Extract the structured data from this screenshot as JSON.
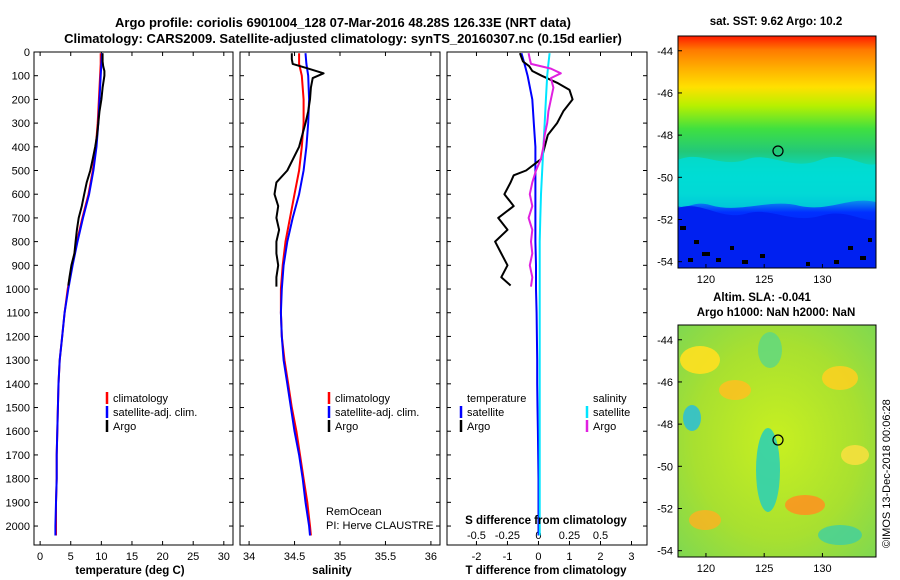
{
  "title": {
    "line1": "Argo profile: coriolis 6901004_128 07-Mar-2016 48.28S 126.33E (NRT data)",
    "line2": "Climatology: CARS2009. Satellite-adjusted climatology: synTS_20160307.nc (0.15d earlier)"
  },
  "side_labels": {
    "sst": "sat. SST: 9.62 Argo: 10.2",
    "sla": "Altim. SLA: -0.041",
    "argo_h": "Argo h1000: NaN h2000: NaN",
    "credit": "©IMOS 13-Dec-2018 00:06:28",
    "pi_line1": "RemOcean",
    "pi_line2": "PI: Herve CLAUSTRE"
  },
  "depth_ticks": [
    "0",
    "100",
    "200",
    "300",
    "400",
    "500",
    "600",
    "700",
    "800",
    "900",
    "1000",
    "1100",
    "1200",
    "1300",
    "1400",
    "1500",
    "1600",
    "1700",
    "1800",
    "1900",
    "2000"
  ],
  "map_ticks": {
    "lat": [
      "-44",
      "-46",
      "-48",
      "-50",
      "-52",
      "-54"
    ],
    "lon": [
      "120",
      "125",
      "130"
    ]
  },
  "colors": {
    "climatology": "#ff0000",
    "satellite": "#0000ff",
    "argo": "#000000",
    "sat_salinity": "#00e5ff",
    "argo_salinity": "#e020e0"
  },
  "chart_data": [
    {
      "type": "line",
      "title": "",
      "xlabel": "temperature (deg C)",
      "ylabel": "",
      "xlim": [
        -1,
        31.5
      ],
      "ylim": [
        2080,
        0
      ],
      "xticks": [
        "0",
        "5",
        "10",
        "15",
        "20",
        "25",
        "30"
      ],
      "legend": [
        "climatology",
        "satellite-adj. clim.",
        "Argo"
      ],
      "series": [
        {
          "name": "climatology",
          "color": "#ff0000",
          "depth": [
            5,
            50,
            100,
            200,
            300,
            400,
            500,
            600,
            700,
            800,
            900,
            1000,
            1100,
            1200,
            1300,
            1400,
            1500,
            1600,
            1700,
            1800,
            1900,
            2000,
            2040
          ],
          "values": [
            9.9,
            9.9,
            9.8,
            9.6,
            9.4,
            9.1,
            8.6,
            7.9,
            6.9,
            6.0,
            5.2,
            4.5,
            4.0,
            3.6,
            3.2,
            3.0,
            2.9,
            2.8,
            2.7,
            2.7,
            2.6,
            2.6,
            2.6
          ]
        },
        {
          "name": "satellite-adj. clim.",
          "color": "#0000ff",
          "depth": [
            5,
            50,
            100,
            200,
            300,
            400,
            500,
            600,
            700,
            800,
            900,
            1000,
            1100,
            1200,
            1300,
            1400,
            1500,
            1600,
            1700,
            1800,
            1900,
            2000,
            2040
          ],
          "values": [
            10.1,
            10.0,
            9.9,
            9.7,
            9.5,
            9.2,
            8.7,
            8.0,
            7.0,
            6.1,
            5.3,
            4.6,
            4.0,
            3.6,
            3.2,
            3.0,
            2.9,
            2.8,
            2.7,
            2.7,
            2.6,
            2.5,
            2.5
          ]
        },
        {
          "name": "Argo",
          "color": "#000000",
          "depth": [
            5,
            40,
            60,
            80,
            100,
            150,
            200,
            250,
            300,
            350,
            400,
            450,
            500,
            550,
            600,
            650,
            700,
            750,
            800,
            850,
            900,
            950,
            985
          ],
          "values": [
            10.2,
            10.2,
            10.3,
            10.5,
            10.5,
            10.2,
            10.0,
            9.7,
            9.5,
            9.3,
            9.0,
            8.6,
            8.2,
            7.6,
            7.2,
            6.8,
            6.3,
            6.0,
            5.8,
            5.6,
            5.1,
            4.8,
            4.6
          ]
        }
      ]
    },
    {
      "type": "line",
      "title": "",
      "xlabel": "salinity",
      "ylabel": "",
      "xlim": [
        33.9,
        36.1
      ],
      "ylim": [
        2080,
        0
      ],
      "xticks": [
        "34",
        "34.5",
        "35",
        "35.5",
        "36"
      ],
      "legend": [
        "climatology",
        "satellite-adj. clim.",
        "Argo"
      ],
      "series": [
        {
          "name": "climatology",
          "color": "#ff0000",
          "depth": [
            5,
            50,
            100,
            200,
            300,
            400,
            500,
            600,
            700,
            800,
            900,
            1000,
            1100,
            1200,
            1300,
            1400,
            1500,
            1600,
            1700,
            1800,
            1900,
            2000,
            2040
          ],
          "values": [
            34.55,
            34.55,
            34.58,
            34.6,
            34.6,
            34.58,
            34.55,
            34.5,
            34.45,
            34.4,
            34.37,
            34.35,
            34.35,
            34.36,
            34.39,
            34.43,
            34.47,
            34.52,
            34.56,
            34.6,
            34.64,
            34.67,
            34.68
          ]
        },
        {
          "name": "satellite-adj. clim.",
          "color": "#0000ff",
          "depth": [
            5,
            50,
            100,
            200,
            300,
            400,
            500,
            600,
            700,
            800,
            900,
            1000,
            1100,
            1200,
            1300,
            1400,
            1500,
            1600,
            1700,
            1800,
            1900,
            2000,
            2040
          ],
          "values": [
            34.62,
            34.63,
            34.65,
            34.66,
            34.65,
            34.63,
            34.6,
            34.55,
            34.48,
            34.42,
            34.38,
            34.36,
            34.35,
            34.36,
            34.38,
            34.42,
            34.46,
            34.5,
            34.55,
            34.59,
            34.62,
            34.66,
            34.67
          ]
        },
        {
          "name": "Argo",
          "color": "#000000",
          "depth": [
            5,
            30,
            50,
            70,
            90,
            110,
            150,
            200,
            250,
            300,
            400,
            500,
            550,
            600,
            650,
            700,
            750,
            800,
            850,
            900,
            950,
            990
          ],
          "values": [
            34.47,
            34.47,
            34.48,
            34.65,
            34.82,
            34.7,
            34.68,
            34.67,
            34.65,
            34.62,
            34.55,
            34.42,
            34.3,
            34.28,
            34.32,
            34.3,
            34.33,
            34.3,
            34.3,
            34.32,
            34.3,
            34.3
          ]
        }
      ]
    },
    {
      "type": "line",
      "title": "",
      "xlabel": "T difference from climatology",
      "xlabel2": "S difference from climatology",
      "ylabel": "",
      "xlim": [
        -2.95,
        3.5
      ],
      "x2lim": [
        -0.7375,
        0.875
      ],
      "ylim": [
        2080,
        0
      ],
      "xticks": [
        "-2",
        "-1",
        "0",
        "1",
        "2",
        "3"
      ],
      "x2ticks": [
        "-0.5",
        "-0.25",
        "0",
        "0.25",
        "0.5"
      ],
      "legend_temperature": [
        "temperature",
        "satellite",
        "Argo"
      ],
      "legend_salinity": [
        "salinity",
        "satellite",
        "Argo"
      ],
      "series": [
        {
          "name": "T satellite",
          "color": "#0000ff",
          "axis": "T",
          "depth": [
            5,
            50,
            100,
            200,
            300,
            400,
            500,
            600,
            700,
            800,
            900,
            1000,
            1100,
            1200,
            1300,
            1400,
            1500,
            1600,
            1700,
            1800,
            1900,
            2000,
            2040
          ],
          "values": [
            -0.55,
            -0.45,
            -0.35,
            -0.2,
            -0.15,
            -0.1,
            -0.1,
            -0.1,
            -0.1,
            -0.1,
            -0.08,
            -0.08,
            -0.06,
            -0.05,
            -0.04,
            -0.04,
            -0.03,
            -0.02,
            -0.01,
            0,
            0,
            0,
            0
          ]
        },
        {
          "name": "T Argo",
          "color": "#000000",
          "axis": "T",
          "depth": [
            5,
            40,
            60,
            80,
            100,
            130,
            160,
            200,
            250,
            300,
            350,
            400,
            450,
            500,
            520,
            550,
            600,
            650,
            700,
            750,
            800,
            850,
            900,
            950,
            985
          ],
          "values": [
            -0.6,
            -0.5,
            -0.3,
            -0.2,
            0.1,
            0.6,
            1.0,
            1.1,
            0.8,
            0.6,
            0.3,
            0.2,
            0.1,
            -0.4,
            -0.8,
            -0.9,
            -1.1,
            -0.8,
            -1.3,
            -1.0,
            -1.4,
            -1.2,
            -1.0,
            -1.2,
            -0.9
          ]
        },
        {
          "name": "S satellite",
          "color": "#00e5ff",
          "axis": "S",
          "depth": [
            5,
            50,
            100,
            200,
            300,
            400,
            500,
            600,
            700,
            800,
            900,
            1000,
            1100,
            1200,
            1300,
            1400,
            1500,
            1600,
            1700,
            1800,
            1900,
            2000,
            2040
          ],
          "values": [
            0.09,
            0.08,
            0.07,
            0.06,
            0.05,
            0.04,
            0.03,
            0.02,
            0.015,
            0.01,
            0.01,
            0.01,
            0.01,
            0.01,
            0.01,
            0.01,
            0.01,
            0.01,
            0.01,
            0.01,
            0.01,
            0.01,
            0.01
          ]
        },
        {
          "name": "S Argo",
          "color": "#e020e0",
          "axis": "S",
          "depth": [
            5,
            30,
            50,
            70,
            90,
            110,
            150,
            200,
            250,
            300,
            350,
            400,
            450,
            500,
            550,
            600,
            650,
            700,
            750,
            800,
            850,
            900,
            950,
            990
          ],
          "values": [
            -0.08,
            -0.07,
            -0.06,
            0.1,
            0.18,
            0.1,
            0.12,
            0.1,
            0.08,
            0.07,
            0.05,
            0.04,
            0.02,
            -0.02,
            -0.05,
            -0.07,
            -0.05,
            -0.08,
            -0.05,
            -0.06,
            -0.05,
            -0.07,
            -0.05,
            -0.06
          ]
        }
      ]
    }
  ]
}
